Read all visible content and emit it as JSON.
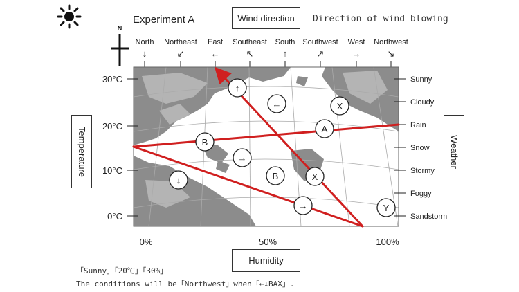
{
  "title": "Experiment A",
  "header_box": "Wind direction",
  "subtitle": "Direction of wind blowing",
  "compass_letter": "N",
  "directions": [
    {
      "label": "North",
      "arrow": "↓"
    },
    {
      "label": "Northeast",
      "arrow": "↙"
    },
    {
      "label": "East",
      "arrow": "←"
    },
    {
      "label": "Southeast",
      "arrow": "↖"
    },
    {
      "label": "South",
      "arrow": "↑"
    },
    {
      "label": "Southwest",
      "arrow": "↗"
    },
    {
      "label": "West",
      "arrow": "→"
    },
    {
      "label": "Northwest",
      "arrow": "↘"
    }
  ],
  "left_axis": {
    "label": "Temperature",
    "ticks": [
      "30°C",
      "20°C",
      "10°C",
      "0°C"
    ]
  },
  "bottom_axis": {
    "label": "Humidity",
    "ticks": [
      "0%",
      "50%",
      "100%"
    ]
  },
  "right_axis": {
    "label": "Weather",
    "ticks": [
      "Sunny",
      "Cloudy",
      "Rain",
      "Snow",
      "Stormy",
      "Foggy",
      "Sandstorm"
    ]
  },
  "circles": [
    {
      "text": "↑"
    },
    {
      "text": "←"
    },
    {
      "text": "X"
    },
    {
      "text": "A"
    },
    {
      "text": "B"
    },
    {
      "text": "→"
    },
    {
      "text": "↓"
    },
    {
      "text": "B"
    },
    {
      "text": "X"
    },
    {
      "text": "→"
    },
    {
      "text": "Y"
    }
  ],
  "notes": [
    "「Sunny」「20℃」「30%」",
    "The conditions will be「Northwest」when「←↓BAX」."
  ],
  "colors": {
    "line": "#d01f1f",
    "land": "#8c8c8c",
    "land_light": "#b4b4b4",
    "sea": "#ffffff"
  }
}
